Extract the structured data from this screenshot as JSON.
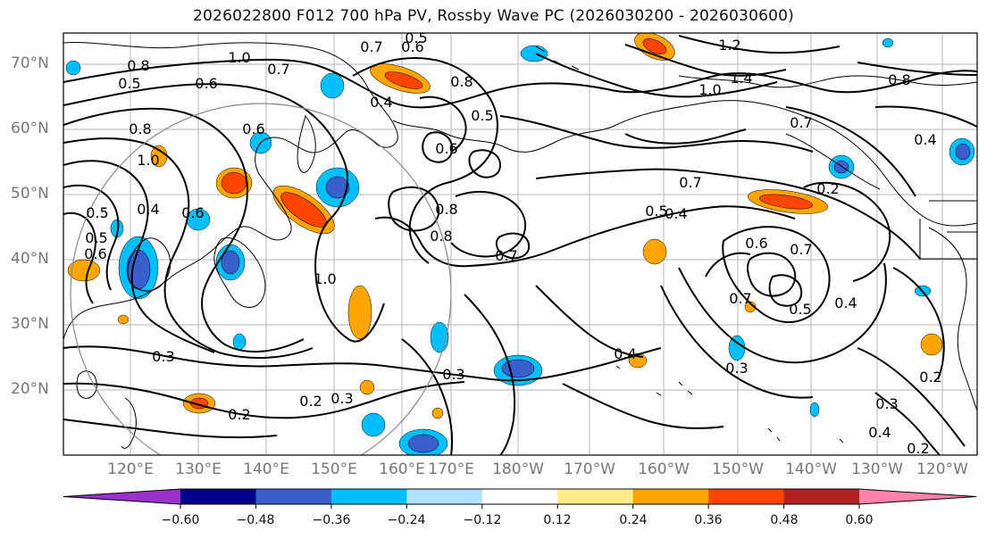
{
  "title": "2026022800 F012 700 hPa PV, Rossby Wave PC (2026030200 - 2026030600)",
  "map": {
    "lat_labels": [
      "70°N",
      "60°N",
      "50°N",
      "40°N",
      "30°N",
      "20°N"
    ],
    "lon_labels": [
      "120°E",
      "130°E",
      "140°E",
      "150°E",
      "160°E",
      "170°E",
      "180°W",
      "170°W",
      "160°W",
      "150°W",
      "140°W",
      "130°W",
      "120°W"
    ],
    "contour_labels": [
      "0.5",
      "0.6",
      "0.7",
      "0.8",
      "1.0",
      "0.7",
      "0.8",
      "0.5",
      "0.6",
      "0.8",
      "0.6",
      "0.4",
      "0.5",
      "0.6",
      "1.0",
      "0.6",
      "0.5",
      "0.8",
      "1.0",
      "0.4",
      "0.5",
      "0.6",
      "0.7",
      "0.8",
      "0.3",
      "0.2",
      "0.3",
      "0.4",
      "0.5",
      "0.6",
      "0.7",
      "0.3",
      "0.4",
      "0.5",
      "0.2",
      "0.3",
      "0.4",
      "0.2",
      "0.3",
      "0.4",
      "0.2",
      "0.7",
      "1.4",
      "1.2",
      "1.0",
      "0.7",
      "0.8",
      "0.4",
      "0.2",
      "0.7"
    ],
    "colors": {
      "coast": "#000000",
      "contour": "#000000",
      "grid": "#b0b0b0"
    }
  },
  "colorbar": {
    "tick_labels": [
      "−0.60",
      "−0.48",
      "−0.36",
      "−0.24",
      "−0.12",
      "0.12",
      "0.24",
      "0.36",
      "0.48",
      "0.60"
    ],
    "colors": [
      "#9932cc",
      "#00008b",
      "#3a5fcd",
      "#00bfff",
      "#b0e2ff",
      "#ffffff",
      "#ffec8b",
      "#ffa500",
      "#ff4500",
      "#b22222",
      "#ff82ab"
    ]
  }
}
